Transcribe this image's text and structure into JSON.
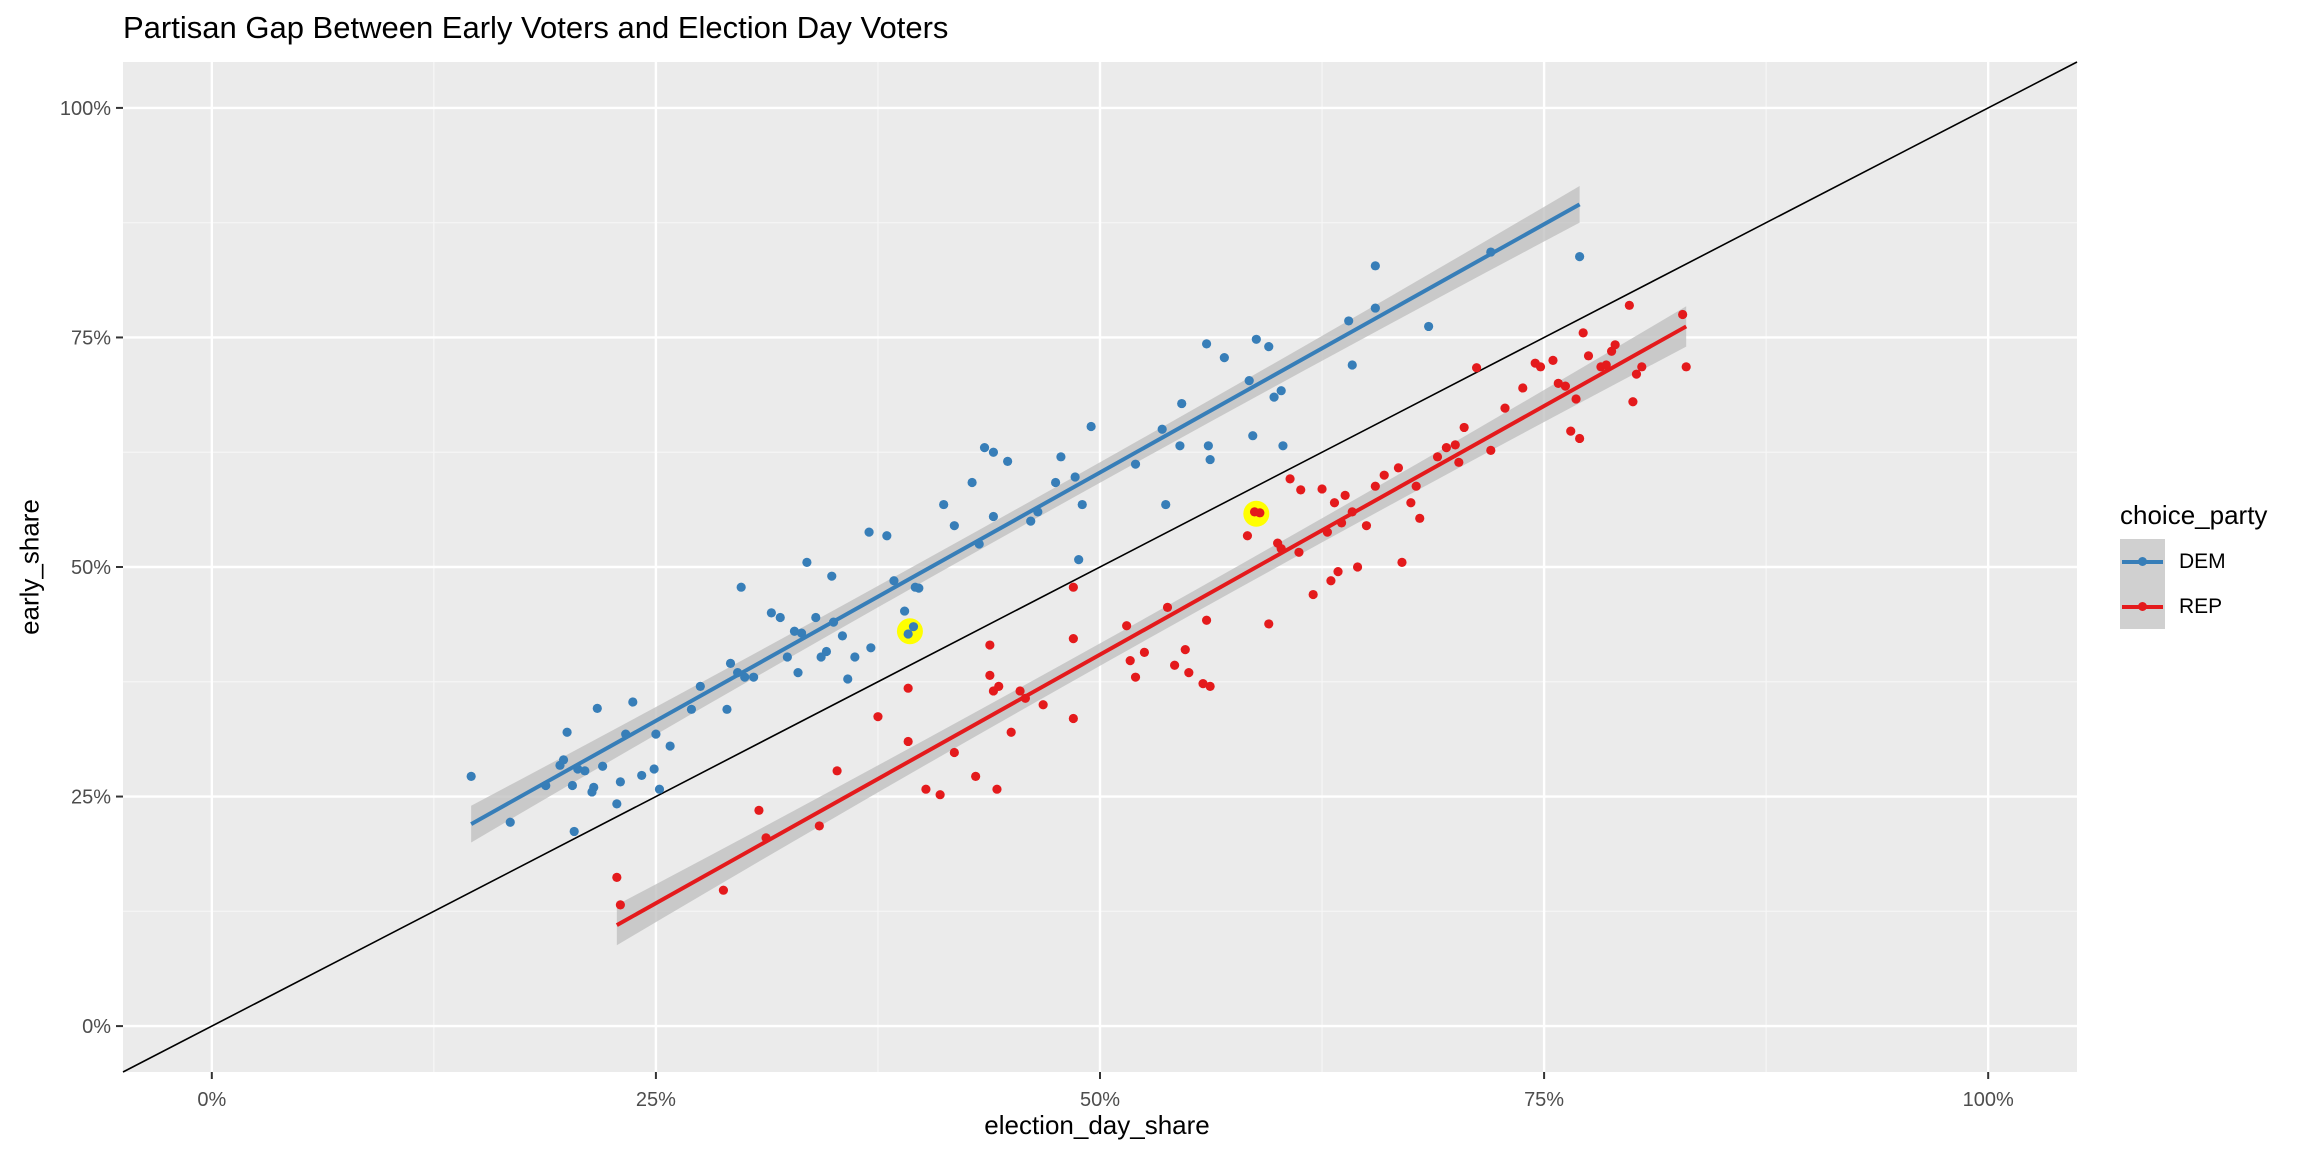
{
  "chart_data": {
    "type": "scatter",
    "title": "Partisan Gap Between Early Voters and Election Day Voters",
    "xlabel": "election_day_share",
    "ylabel": "early_share",
    "xlim": [
      -0.05,
      1.05
    ],
    "ylim": [
      -0.05,
      1.05
    ],
    "x_ticks": [
      0,
      0.25,
      0.5,
      0.75,
      1.0
    ],
    "x_tick_labels": [
      "0%",
      "25%",
      "50%",
      "75%",
      "100%"
    ],
    "y_ticks": [
      0,
      0.25,
      0.5,
      0.75,
      1.0
    ],
    "y_tick_labels": [
      "0%",
      "25%",
      "50%",
      "75%",
      "100%"
    ],
    "grid": true,
    "reference_line": {
      "slope": 1,
      "intercept": 0,
      "color": "#000000"
    },
    "legend": {
      "title": "choice_party",
      "position": "right"
    },
    "series": [
      {
        "name": "DEM",
        "color": "#377EB8",
        "points": [
          [
            0.146,
            0.272
          ],
          [
            0.168,
            0.222
          ],
          [
            0.188,
            0.262
          ],
          [
            0.196,
            0.284
          ],
          [
            0.198,
            0.29
          ],
          [
            0.2,
            0.32
          ],
          [
            0.203,
            0.262
          ],
          [
            0.204,
            0.212
          ],
          [
            0.206,
            0.28
          ],
          [
            0.21,
            0.278
          ],
          [
            0.214,
            0.255
          ],
          [
            0.215,
            0.26
          ],
          [
            0.217,
            0.346
          ],
          [
            0.22,
            0.283
          ],
          [
            0.228,
            0.242
          ],
          [
            0.23,
            0.266
          ],
          [
            0.233,
            0.318
          ],
          [
            0.237,
            0.353
          ],
          [
            0.242,
            0.273
          ],
          [
            0.249,
            0.28
          ],
          [
            0.25,
            0.318
          ],
          [
            0.252,
            0.258
          ],
          [
            0.258,
            0.305
          ],
          [
            0.27,
            0.345
          ],
          [
            0.275,
            0.37
          ],
          [
            0.29,
            0.345
          ],
          [
            0.292,
            0.395
          ],
          [
            0.296,
            0.385
          ],
          [
            0.298,
            0.478
          ],
          [
            0.3,
            0.38
          ],
          [
            0.305,
            0.38
          ],
          [
            0.315,
            0.45
          ],
          [
            0.32,
            0.445
          ],
          [
            0.324,
            0.402
          ],
          [
            0.328,
            0.43
          ],
          [
            0.33,
            0.385
          ],
          [
            0.332,
            0.428
          ],
          [
            0.335,
            0.505
          ],
          [
            0.34,
            0.445
          ],
          [
            0.343,
            0.402
          ],
          [
            0.346,
            0.408
          ],
          [
            0.349,
            0.49
          ],
          [
            0.35,
            0.44
          ],
          [
            0.355,
            0.425
          ],
          [
            0.358,
            0.378
          ],
          [
            0.362,
            0.402
          ],
          [
            0.37,
            0.538
          ],
          [
            0.371,
            0.412
          ],
          [
            0.38,
            0.534
          ],
          [
            0.384,
            0.485
          ],
          [
            0.39,
            0.452
          ],
          [
            0.392,
            0.427
          ],
          [
            0.395,
            0.435
          ],
          [
            0.396,
            0.478
          ],
          [
            0.398,
            0.477
          ],
          [
            0.412,
            0.568
          ],
          [
            0.418,
            0.545
          ],
          [
            0.428,
            0.592
          ],
          [
            0.432,
            0.525
          ],
          [
            0.435,
            0.63
          ],
          [
            0.44,
            0.555
          ],
          [
            0.44,
            0.625
          ],
          [
            0.448,
            0.615
          ],
          [
            0.461,
            0.55
          ],
          [
            0.465,
            0.56
          ],
          [
            0.475,
            0.592
          ],
          [
            0.478,
            0.62
          ],
          [
            0.486,
            0.598
          ],
          [
            0.488,
            0.508
          ],
          [
            0.49,
            0.568
          ],
          [
            0.495,
            0.653
          ],
          [
            0.52,
            0.612
          ],
          [
            0.535,
            0.65
          ],
          [
            0.537,
            0.568
          ],
          [
            0.545,
            0.632
          ],
          [
            0.546,
            0.678
          ],
          [
            0.56,
            0.743
          ],
          [
            0.561,
            0.632
          ],
          [
            0.562,
            0.617
          ],
          [
            0.57,
            0.728
          ],
          [
            0.584,
            0.703
          ],
          [
            0.586,
            0.643
          ],
          [
            0.588,
            0.748
          ],
          [
            0.595,
            0.74
          ],
          [
            0.598,
            0.685
          ],
          [
            0.602,
            0.692
          ],
          [
            0.603,
            0.632
          ],
          [
            0.64,
            0.768
          ],
          [
            0.642,
            0.72
          ],
          [
            0.655,
            0.782
          ],
          [
            0.655,
            0.828
          ],
          [
            0.685,
            0.762
          ],
          [
            0.72,
            0.843
          ],
          [
            0.77,
            0.838
          ]
        ]
      },
      {
        "name": "REP",
        "color": "#E41A1C",
        "points": [
          [
            0.228,
            0.162
          ],
          [
            0.23,
            0.132
          ],
          [
            0.288,
            0.148
          ],
          [
            0.308,
            0.235
          ],
          [
            0.312,
            0.205
          ],
          [
            0.342,
            0.218
          ],
          [
            0.352,
            0.278
          ],
          [
            0.375,
            0.337
          ],
          [
            0.392,
            0.31
          ],
          [
            0.392,
            0.368
          ],
          [
            0.402,
            0.258
          ],
          [
            0.41,
            0.252
          ],
          [
            0.418,
            0.298
          ],
          [
            0.43,
            0.272
          ],
          [
            0.438,
            0.415
          ],
          [
            0.438,
            0.382
          ],
          [
            0.44,
            0.365
          ],
          [
            0.442,
            0.258
          ],
          [
            0.443,
            0.37
          ],
          [
            0.45,
            0.32
          ],
          [
            0.455,
            0.365
          ],
          [
            0.458,
            0.357
          ],
          [
            0.468,
            0.35
          ],
          [
            0.485,
            0.478
          ],
          [
            0.485,
            0.422
          ],
          [
            0.485,
            0.335
          ],
          [
            0.515,
            0.436
          ],
          [
            0.517,
            0.398
          ],
          [
            0.52,
            0.38
          ],
          [
            0.525,
            0.407
          ],
          [
            0.538,
            0.456
          ],
          [
            0.542,
            0.393
          ],
          [
            0.548,
            0.41
          ],
          [
            0.55,
            0.385
          ],
          [
            0.558,
            0.373
          ],
          [
            0.56,
            0.442
          ],
          [
            0.562,
            0.37
          ],
          [
            0.583,
            0.534
          ],
          [
            0.587,
            0.56
          ],
          [
            0.59,
            0.559
          ],
          [
            0.595,
            0.438
          ],
          [
            0.6,
            0.526
          ],
          [
            0.602,
            0.52
          ],
          [
            0.607,
            0.596
          ],
          [
            0.612,
            0.516
          ],
          [
            0.613,
            0.584
          ],
          [
            0.62,
            0.47
          ],
          [
            0.625,
            0.585
          ],
          [
            0.628,
            0.538
          ],
          [
            0.63,
            0.485
          ],
          [
            0.632,
            0.57
          ],
          [
            0.634,
            0.495
          ],
          [
            0.636,
            0.548
          ],
          [
            0.638,
            0.578
          ],
          [
            0.642,
            0.56
          ],
          [
            0.645,
            0.5
          ],
          [
            0.65,
            0.545
          ],
          [
            0.655,
            0.588
          ],
          [
            0.66,
            0.6
          ],
          [
            0.668,
            0.608
          ],
          [
            0.67,
            0.505
          ],
          [
            0.675,
            0.57
          ],
          [
            0.678,
            0.588
          ],
          [
            0.68,
            0.553
          ],
          [
            0.69,
            0.62
          ],
          [
            0.695,
            0.63
          ],
          [
            0.7,
            0.633
          ],
          [
            0.702,
            0.614
          ],
          [
            0.705,
            0.652
          ],
          [
            0.712,
            0.717
          ],
          [
            0.72,
            0.627
          ],
          [
            0.728,
            0.673
          ],
          [
            0.738,
            0.695
          ],
          [
            0.745,
            0.722
          ],
          [
            0.748,
            0.718
          ],
          [
            0.755,
            0.725
          ],
          [
            0.758,
            0.7
          ],
          [
            0.762,
            0.697
          ],
          [
            0.765,
            0.648
          ],
          [
            0.768,
            0.683
          ],
          [
            0.77,
            0.64
          ],
          [
            0.772,
            0.755
          ],
          [
            0.775,
            0.73
          ],
          [
            0.782,
            0.718
          ],
          [
            0.785,
            0.72
          ],
          [
            0.788,
            0.735
          ],
          [
            0.79,
            0.742
          ],
          [
            0.798,
            0.785
          ],
          [
            0.8,
            0.68
          ],
          [
            0.802,
            0.71
          ],
          [
            0.805,
            0.718
          ],
          [
            0.828,
            0.775
          ],
          [
            0.83,
            0.718
          ]
        ]
      }
    ],
    "trend_lines": [
      {
        "series": "DEM",
        "x": [
          0.146,
          0.77
        ],
        "y": [
          0.22,
          0.895
        ],
        "band": 0.02,
        "color": "#377EB8"
      },
      {
        "series": "REP",
        "x": [
          0.228,
          0.83
        ],
        "y": [
          0.11,
          0.762
        ],
        "band": 0.022,
        "color": "#E41A1C"
      }
    ],
    "highlighted_points": [
      [
        0.393,
        0.43
      ],
      [
        0.588,
        0.558
      ]
    ],
    "highlight_color": "#FFFF00"
  }
}
